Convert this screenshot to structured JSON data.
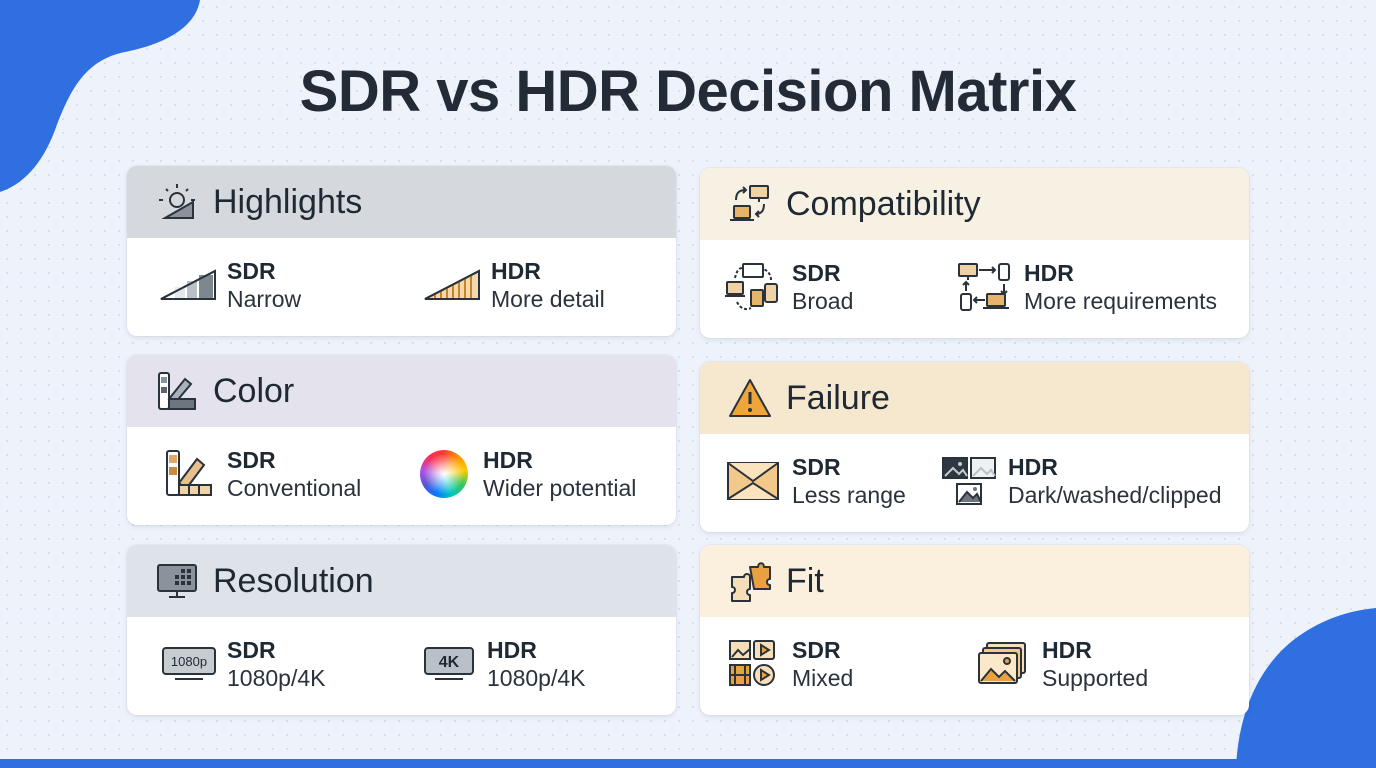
{
  "title": "SDR vs HDR Decision Matrix",
  "cards": {
    "highlights": {
      "title": "Highlights",
      "header_color": "#d5d9dd",
      "icon": "sun-shield-icon",
      "sdr": {
        "label": "SDR",
        "value": "Narrow",
        "icon": "gradient-steps-icon"
      },
      "hdr": {
        "label": "HDR",
        "value": "More detail",
        "icon": "gradient-detail-icon"
      }
    },
    "color": {
      "title": "Color",
      "header_color": "#e4e2ec",
      "icon": "swatch-fan-icon",
      "sdr": {
        "label": "SDR",
        "value": "Conventional",
        "icon": "color-swatch-icon"
      },
      "hdr": {
        "label": "HDR",
        "value": "Wider potential",
        "icon": "color-wheel-icon"
      }
    },
    "resolution": {
      "title": "Resolution",
      "header_color": "#dde3e8",
      "icon": "monitor-grid-icon",
      "sdr": {
        "label": "SDR",
        "value": "1080p/4K",
        "icon": "monitor-1080p-icon",
        "badge": "1080p"
      },
      "hdr": {
        "label": "HDR",
        "value": "1080p/4K",
        "icon": "monitor-4k-icon",
        "badge": "4K"
      }
    },
    "compatibility": {
      "title": "Compatibility",
      "header_color": "#f7f1e4",
      "icon": "device-sync-icon",
      "sdr": {
        "label": "SDR",
        "value": "Broad",
        "icon": "devices-cycle-icon"
      },
      "hdr": {
        "label": "HDR",
        "value": "More requirements",
        "icon": "devices-flow-icon"
      }
    },
    "failure": {
      "title": "Failure",
      "header_color": "#f6e8cf",
      "icon": "warning-icon",
      "sdr": {
        "label": "SDR",
        "value": "Less range",
        "icon": "compressed-range-icon"
      },
      "hdr": {
        "label": "HDR",
        "value": "Dark/washed/clipped",
        "icon": "image-variants-icon"
      }
    },
    "fit": {
      "title": "Fit",
      "header_color": "#fbf0de",
      "icon": "puzzle-icon",
      "sdr": {
        "label": "SDR",
        "value": "Mixed",
        "icon": "mixed-media-icon"
      },
      "hdr": {
        "label": "HDR",
        "value": "Supported",
        "icon": "image-stack-icon"
      }
    }
  },
  "colors": {
    "accent": "#2f6fe0",
    "orange": "#e08a1e",
    "dark": "#3b4450"
  }
}
